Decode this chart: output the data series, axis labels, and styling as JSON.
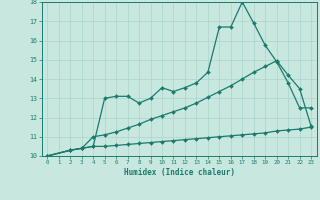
{
  "xlabel": "Humidex (Indice chaleur)",
  "xlim": [
    -0.5,
    23.5
  ],
  "ylim": [
    10,
    18
  ],
  "yticks": [
    10,
    11,
    12,
    13,
    14,
    15,
    16,
    17,
    18
  ],
  "xticks": [
    0,
    1,
    2,
    3,
    4,
    5,
    6,
    7,
    8,
    9,
    10,
    11,
    12,
    13,
    14,
    15,
    16,
    17,
    18,
    19,
    20,
    21,
    22,
    23
  ],
  "bg_color": "#c8e8df",
  "line_color": "#1a7a6e",
  "grid_color": "#b0d8d0",
  "line1_x": [
    0,
    2,
    3,
    4,
    5,
    6,
    7,
    8,
    9,
    10,
    11,
    12,
    13,
    14,
    15,
    16,
    17,
    18,
    19,
    20,
    21,
    22,
    23
  ],
  "line1_y": [
    10.0,
    10.3,
    10.4,
    10.5,
    13.0,
    13.1,
    13.1,
    12.75,
    13.0,
    13.55,
    13.35,
    13.55,
    13.8,
    14.35,
    16.7,
    16.7,
    18.0,
    16.9,
    15.75,
    14.9,
    13.8,
    12.5,
    12.5
  ],
  "line2_x": [
    0,
    2,
    3,
    4,
    5,
    6,
    7,
    8,
    9,
    10,
    11,
    12,
    13,
    14,
    15,
    16,
    17,
    18,
    19,
    20,
    21,
    22,
    23
  ],
  "line2_y": [
    10.0,
    10.3,
    10.4,
    11.0,
    11.1,
    11.25,
    11.45,
    11.65,
    11.9,
    12.1,
    12.3,
    12.5,
    12.75,
    13.05,
    13.35,
    13.65,
    14.0,
    14.35,
    14.65,
    14.95,
    14.2,
    13.5,
    11.55
  ],
  "line3_x": [
    0,
    2,
    3,
    4,
    5,
    6,
    7,
    8,
    9,
    10,
    11,
    12,
    13,
    14,
    15,
    16,
    17,
    18,
    19,
    20,
    21,
    22,
    23
  ],
  "line3_y": [
    10.0,
    10.3,
    10.4,
    10.5,
    10.5,
    10.55,
    10.6,
    10.65,
    10.7,
    10.75,
    10.8,
    10.85,
    10.9,
    10.95,
    11.0,
    11.05,
    11.1,
    11.15,
    11.2,
    11.3,
    11.35,
    11.4,
    11.5
  ]
}
